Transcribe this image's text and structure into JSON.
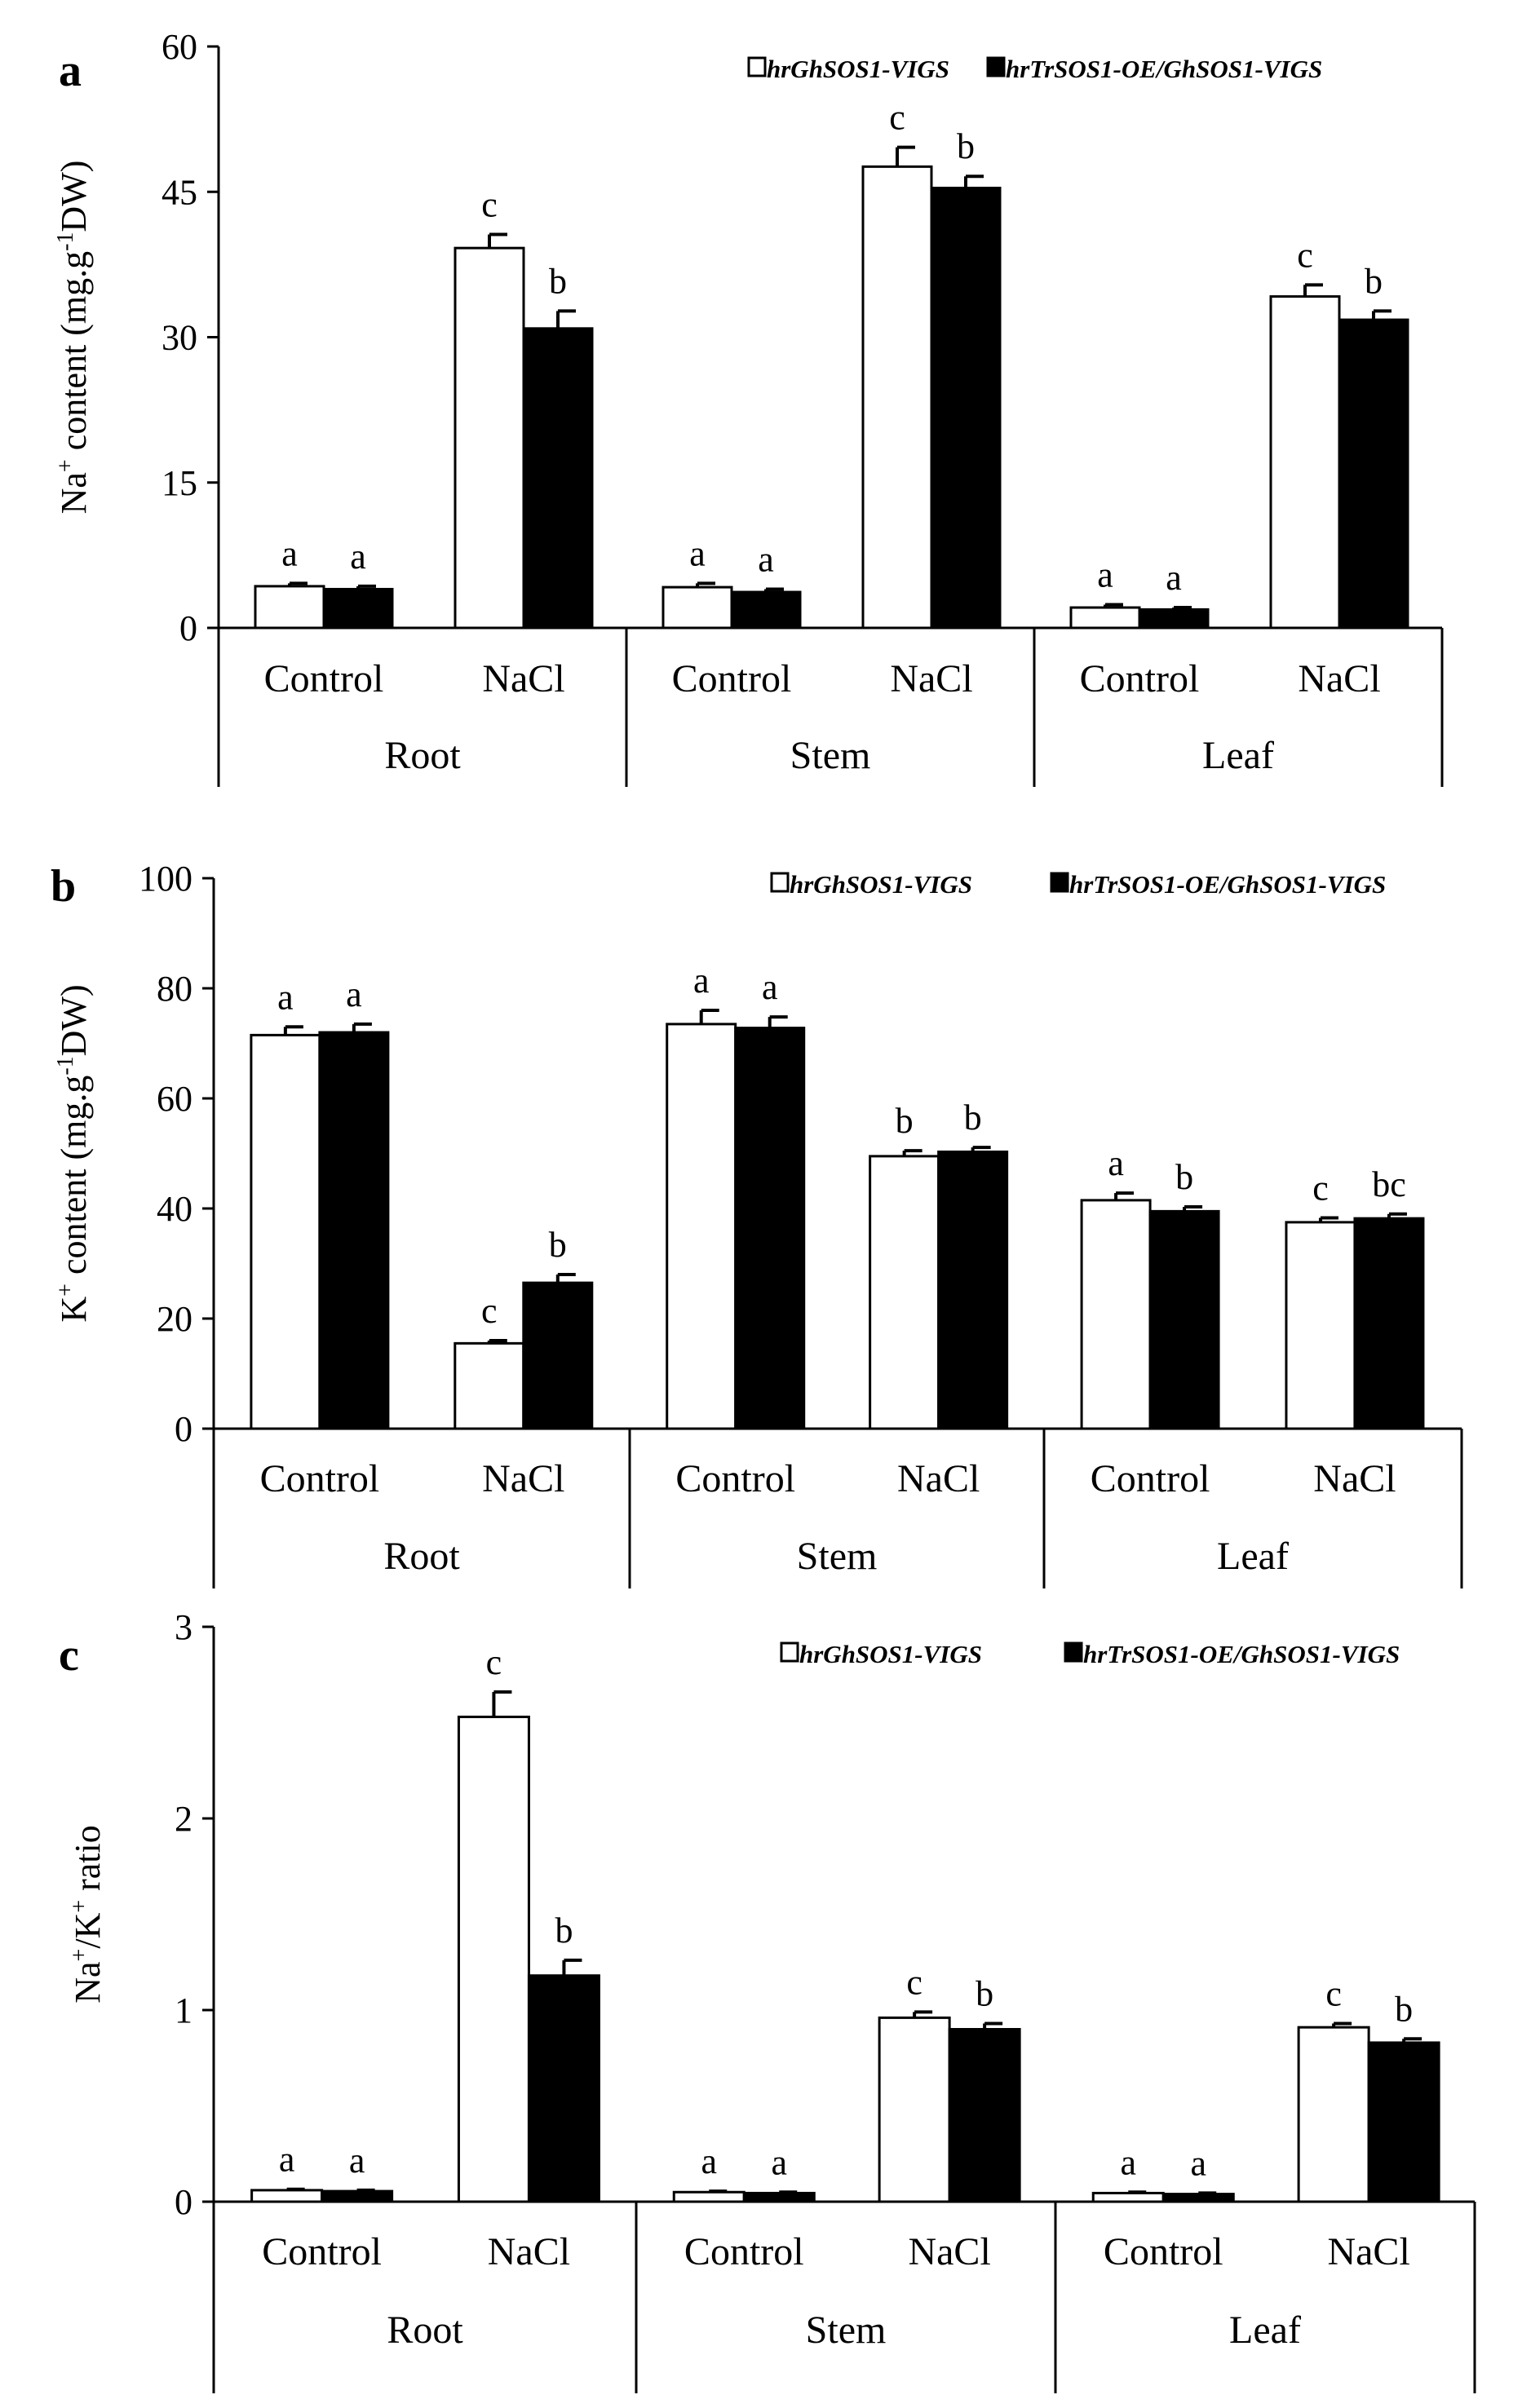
{
  "chart_data": [
    {
      "type": "bar",
      "panel": "a",
      "ylabel_parts": [
        "Na",
        "+",
        " content (mg.g",
        "-1",
        "DW)"
      ],
      "ylim": [
        0,
        60
      ],
      "yticks": [
        "0",
        "15",
        "30",
        "45",
        "60"
      ],
      "legend": [
        {
          "name": "hrGhSOS1-VIGS",
          "color": "#ffffff"
        },
        {
          "name": "hrTrSOS1-OE/GhSOS1-VIGS",
          "color": "#000000"
        }
      ],
      "tissues": [
        "Root",
        "Stem",
        "Leaf"
      ],
      "categories": [
        "Control",
        "NaCl",
        "Control",
        "NaCl",
        "Control",
        "NaCl"
      ],
      "series": [
        {
          "name": "hrGhSOS1-VIGS",
          "values": [
            4.3,
            39.2,
            4.2,
            47.6,
            2.1,
            34.2
          ],
          "errors": [
            0.3,
            1.4,
            0.4,
            2.0,
            0.3,
            1.2
          ],
          "sig": [
            "a",
            "c",
            "a",
            "c",
            "a",
            "c"
          ]
        },
        {
          "name": "hrTrSOS1-OE/GhSOS1-VIGS",
          "values": [
            4.0,
            30.9,
            3.7,
            45.4,
            1.9,
            31.8
          ],
          "errors": [
            0.3,
            1.8,
            0.3,
            1.2,
            0.2,
            0.9
          ],
          "sig": [
            "a",
            "b",
            "a",
            "b",
            "a",
            "b"
          ]
        }
      ]
    },
    {
      "type": "bar",
      "panel": "b",
      "ylabel_parts": [
        "K",
        "+",
        " content (mg.g",
        "-1",
        "DW)"
      ],
      "ylim": [
        0,
        100
      ],
      "yticks": [
        "0",
        "20",
        "40",
        "60",
        "80",
        "100"
      ],
      "legend": [
        {
          "name": "hrGhSOS1-VIGS",
          "color": "#ffffff"
        },
        {
          "name": "hrTrSOS1-OE/GhSOS1-VIGS",
          "color": "#000000"
        }
      ],
      "tissues": [
        "Root",
        "Stem",
        "Leaf"
      ],
      "categories": [
        "Control",
        "NaCl",
        "Control",
        "NaCl",
        "Control",
        "NaCl"
      ],
      "series": [
        {
          "name": "hrGhSOS1-VIGS",
          "values": [
            71.5,
            15.5,
            73.5,
            49.5,
            41.5,
            37.5
          ],
          "errors": [
            1.5,
            0.5,
            2.5,
            1.0,
            1.3,
            0.8
          ],
          "sig": [
            "a",
            "c",
            "a",
            "b",
            "a",
            "c"
          ]
        },
        {
          "name": "hrTrSOS1-OE/GhSOS1-VIGS",
          "values": [
            72.0,
            26.5,
            72.8,
            50.3,
            39.5,
            38.2
          ],
          "errors": [
            1.5,
            1.5,
            2.0,
            0.8,
            0.8,
            0.8
          ],
          "sig": [
            "a",
            "b",
            "a",
            "b",
            "b",
            "bc"
          ]
        }
      ]
    },
    {
      "type": "bar",
      "panel": "c",
      "ylabel_parts": [
        "Na",
        "+",
        "/K",
        "+",
        " ratio"
      ],
      "ylim": [
        0,
        3
      ],
      "yticks": [
        "0",
        "1",
        "2",
        "3"
      ],
      "legend": [
        {
          "name": "hrGhSOS1-VIGS",
          "color": "#ffffff"
        },
        {
          "name": "hrTrSOS1-OE/GhSOS1-VIGS",
          "color": "#000000"
        }
      ],
      "tissues": [
        "Root",
        "Stem",
        "Leaf"
      ],
      "categories": [
        "Control",
        "NaCl",
        "Control",
        "NaCl",
        "Control",
        "NaCl"
      ],
      "series": [
        {
          "name": "hrGhSOS1-VIGS",
          "values": [
            0.06,
            2.53,
            0.05,
            0.96,
            0.045,
            0.91
          ],
          "errors": [
            0.005,
            0.13,
            0.005,
            0.03,
            0.005,
            0.02
          ],
          "sig": [
            "a",
            "c",
            "a",
            "c",
            "a",
            "c"
          ]
        },
        {
          "name": "hrTrSOS1-OE/GhSOS1-VIGS",
          "values": [
            0.055,
            1.18,
            0.045,
            0.9,
            0.04,
            0.83
          ],
          "errors": [
            0.005,
            0.08,
            0.005,
            0.03,
            0.005,
            0.02
          ],
          "sig": [
            "a",
            "b",
            "a",
            "b",
            "a",
            "b"
          ]
        }
      ]
    }
  ]
}
